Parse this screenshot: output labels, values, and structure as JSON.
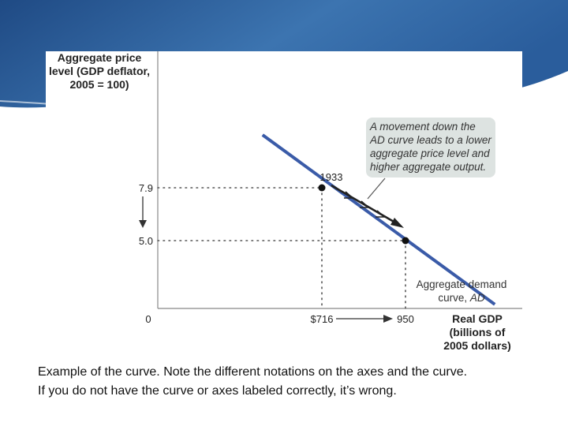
{
  "theme": {
    "header_dark": "#1e4b86",
    "header_light": "#5a93c8",
    "curve_color": "#3a5ba8",
    "callout_bg": "#dde3e1"
  },
  "chart_data": {
    "type": "line",
    "title": "",
    "ylabel_lines": [
      "Aggregate price",
      "level (GDP deflator,",
      "2005 = 100)"
    ],
    "xlabel_lines": [
      "Real GDP",
      "(billions of",
      "2005 dollars)"
    ],
    "origin_label": "0",
    "series": [
      {
        "name": "Aggregate demand curve, AD",
        "points": [
          [
            550,
            10.8
          ],
          [
            1200,
            1.5
          ]
        ]
      }
    ],
    "points_of_interest": [
      {
        "label": "1933",
        "x": 716,
        "y": 7.9,
        "x_tick_label": "$716",
        "y_tick_label": "7.9"
      },
      {
        "label": "",
        "x": 950,
        "y": 5.0,
        "x_tick_label": "950",
        "y_tick_label": "5.0"
      }
    ],
    "curve_label_line1": "Aggregate demand",
    "curve_label_line2_prefix": "curve, ",
    "curve_label_line2_symbol": "AD",
    "annotation_lines": [
      "A movement down the",
      "AD curve leads to a lower",
      "aggregate price level and",
      "higher aggregate output."
    ],
    "grid": false
  },
  "caption": {
    "line1": "Example of the curve.  Note the different notations on the axes and the curve.",
    "line2": "If you do not have the curve or axes labeled correctly, it’s wrong."
  }
}
